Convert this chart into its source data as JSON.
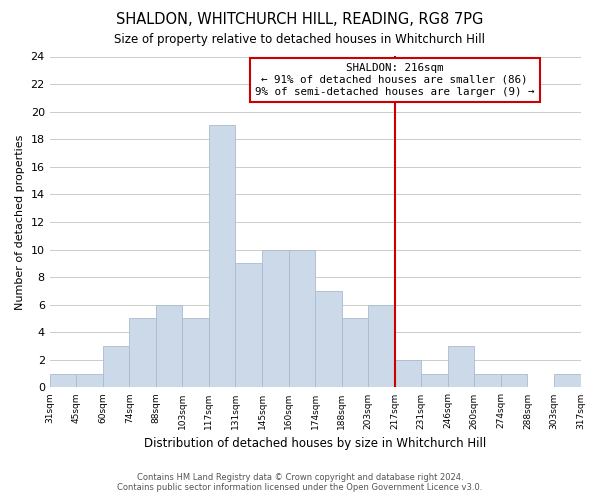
{
  "title": "SHALDON, WHITCHURCH HILL, READING, RG8 7PG",
  "subtitle": "Size of property relative to detached houses in Whitchurch Hill",
  "xlabel": "Distribution of detached houses by size in Whitchurch Hill",
  "ylabel": "Number of detached properties",
  "bin_labels": [
    "31sqm",
    "45sqm",
    "60sqm",
    "74sqm",
    "88sqm",
    "103sqm",
    "117sqm",
    "131sqm",
    "145sqm",
    "160sqm",
    "174sqm",
    "188sqm",
    "203sqm",
    "217sqm",
    "231sqm",
    "246sqm",
    "260sqm",
    "274sqm",
    "288sqm",
    "303sqm",
    "317sqm"
  ],
  "bar_heights": [
    1,
    1,
    3,
    5,
    6,
    5,
    19,
    9,
    10,
    10,
    7,
    5,
    6,
    2,
    1,
    3,
    1,
    1,
    0,
    1
  ],
  "bar_color": "#ccd9e8",
  "bar_edge_color": "#aabcce",
  "ylim": [
    0,
    24
  ],
  "yticks": [
    0,
    2,
    4,
    6,
    8,
    10,
    12,
    14,
    16,
    18,
    20,
    22,
    24
  ],
  "vline_x_index": 13,
  "vline_color": "#cc0000",
  "annotation_title": "SHALDON: 216sqm",
  "annotation_line1": "← 91% of detached houses are smaller (86)",
  "annotation_line2": "9% of semi-detached houses are larger (9) →",
  "annotation_box_color": "#ffffff",
  "annotation_box_edge": "#cc0000",
  "footer_line1": "Contains HM Land Registry data © Crown copyright and database right 2024.",
  "footer_line2": "Contains public sector information licensed under the Open Government Licence v3.0.",
  "background_color": "#ffffff",
  "grid_color": "#cccccc"
}
